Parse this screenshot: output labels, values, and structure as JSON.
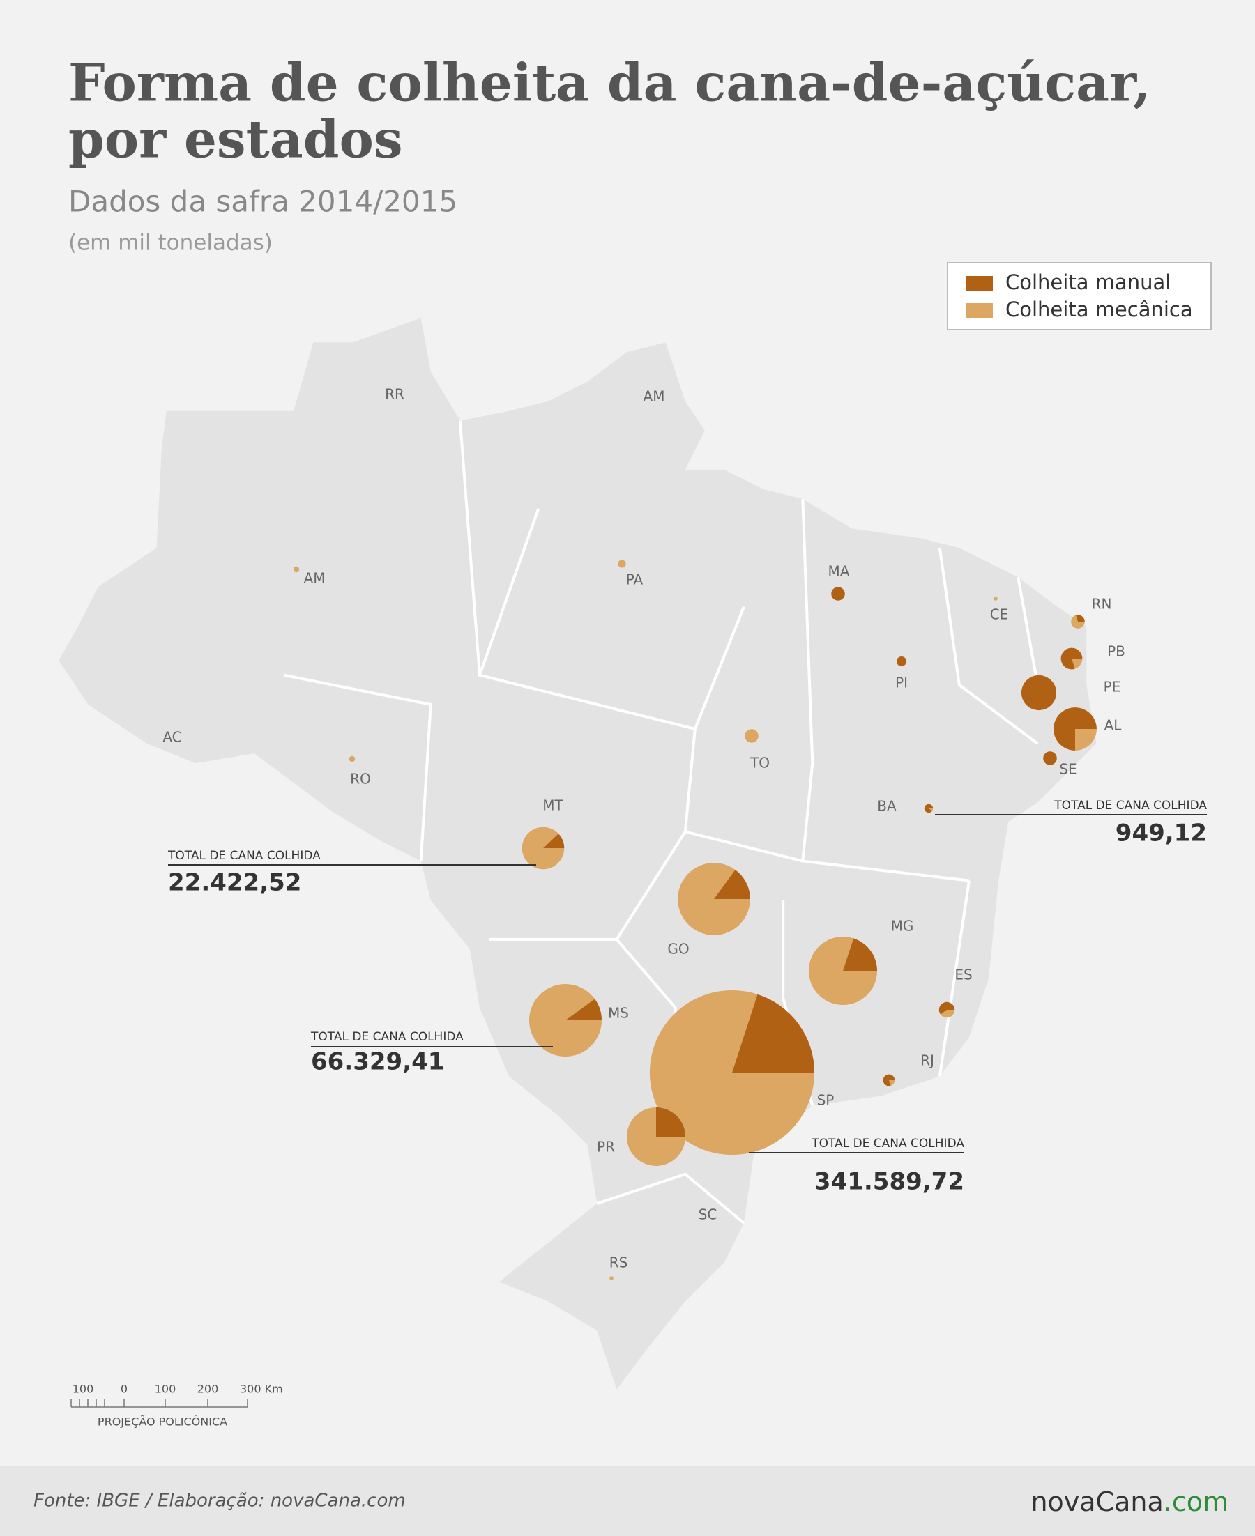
{
  "header": {
    "title_lines": [
      "Forma de colheita da cana-de-açúcar,",
      "por estados"
    ],
    "subtitle": "Dados da safra 2014/2015",
    "unit_note": "(em mil toneladas)"
  },
  "legend": [
    {
      "label": "Colheita manual",
      "color": "#b06114"
    },
    {
      "label": "Colheita mecânica",
      "color": "#dba762"
    }
  ],
  "map": {
    "labels": [
      "RR",
      "AM",
      "AC",
      "SC"
    ],
    "states": [
      {
        "label": "SP",
        "total": 341589.72,
        "total_label": "341.589,72",
        "callout": "TOTAL DE CANA COLHIDA",
        "manual_pct": 20
      },
      {
        "label": "MT",
        "total": 22422.52,
        "total_label": "22.422,52",
        "callout": "TOTAL DE CANA COLHIDA",
        "manual_pct": 12
      },
      {
        "label": "GO",
        "total": 66000,
        "manual_pct": 15
      },
      {
        "label": "MG",
        "total": 58900,
        "manual_pct": 20
      },
      {
        "label": "MS",
        "total": 66329.41,
        "total_label": "66.329,41",
        "callout": "TOTAL DE CANA COLHIDA",
        "manual_pct": 10
      },
      {
        "label": "PR",
        "total": 43200,
        "manual_pct": 25
      },
      {
        "label": "AL",
        "total": 23400,
        "manual_pct": 75
      },
      {
        "label": "PE",
        "total": 15400,
        "manual_pct": 100
      },
      {
        "label": "PB",
        "total": 5800,
        "manual_pct": 80
      },
      {
        "label": "RN",
        "total": 2350,
        "manual_pct": 30
      },
      {
        "label": "SE",
        "total": 2350,
        "manual_pct": 100
      },
      {
        "label": "MA",
        "total": 2350,
        "manual_pct": 100
      },
      {
        "label": "PI",
        "total": 1200,
        "manual_pct": 100
      },
      {
        "label": "BA",
        "total": 949.12,
        "total_label": "949,12",
        "callout": "TOTAL DE CANA COLHIDA",
        "manual_pct": 90
      },
      {
        "label": "ES",
        "total": 3070,
        "manual_pct": 60
      },
      {
        "label": "RJ",
        "total": 1730,
        "manual_pct": 80
      },
      {
        "label": "TO",
        "total": 2350,
        "manual_pct": 0
      },
      {
        "label": "PA",
        "total": 770,
        "manual_pct": 0
      },
      {
        "label": "AM",
        "total": 430,
        "manual_pct": 0
      },
      {
        "label": "RO",
        "total": 430,
        "manual_pct": 0
      },
      {
        "label": "CE",
        "total": 190,
        "manual_pct": 0
      },
      {
        "label": "RS",
        "total": 190,
        "manual_pct": 0
      }
    ]
  },
  "scale": {
    "ticks": [
      "100",
      "0",
      "100",
      "200",
      "300 Km"
    ],
    "projection": "PROJEÇÃO POLICÔNICA"
  },
  "footer": {
    "source": "Fonte: IBGE / Elaboração: novaCana.com",
    "logo_name": "novaCana",
    "logo_suffix": ".com"
  }
}
